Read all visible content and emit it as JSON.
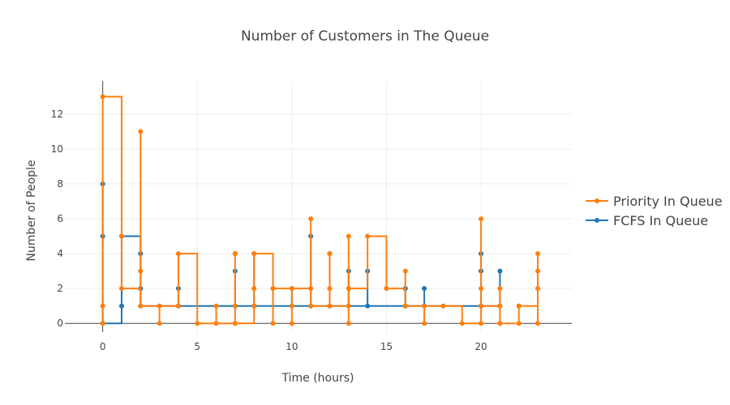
{
  "chart_data": {
    "type": "line",
    "title": "Number of Customers in The Queue",
    "xlabel": "Time (hours)",
    "ylabel": "Number of People",
    "xlim": [
      -2,
      24.8
    ],
    "ylim": [
      -0.5,
      13.9
    ],
    "xticks": [
      0,
      5,
      10,
      15,
      20
    ],
    "yticks": [
      0,
      2,
      4,
      6,
      8,
      10,
      12
    ],
    "grid": true,
    "legend_position": "right",
    "line_shape": "step",
    "series": [
      {
        "name": "Priority In Queue",
        "color": "#ff7f0e",
        "x": [
          0,
          0,
          0,
          1,
          1,
          2,
          2,
          2,
          3,
          3,
          4,
          4,
          5,
          6,
          6,
          7,
          7,
          7,
          7,
          7,
          8,
          8,
          8,
          9,
          9,
          9,
          10,
          10,
          10,
          11,
          11,
          11,
          12,
          12,
          12,
          13,
          13,
          13,
          13,
          13,
          14,
          15,
          15,
          16,
          16,
          16,
          17,
          17,
          18,
          19,
          20,
          20,
          20,
          20,
          21,
          21,
          21,
          21,
          22,
          22,
          22,
          23,
          23,
          23,
          23
        ],
        "y": [
          0,
          1,
          13,
          5,
          2,
          11,
          3,
          1,
          0,
          1,
          1,
          4,
          0,
          1,
          0,
          0,
          4,
          4,
          1,
          0,
          2,
          1,
          4,
          0,
          2,
          2,
          1,
          0,
          2,
          6,
          2,
          1,
          4,
          2,
          1,
          5,
          2,
          1,
          0,
          2,
          5,
          2,
          2,
          1,
          3,
          1,
          0,
          1,
          1,
          0,
          0,
          6,
          2,
          1,
          0,
          2,
          1,
          0,
          0,
          1,
          1,
          4,
          2,
          3,
          0
        ]
      },
      {
        "name": "FCFS In Queue",
        "color": "#1f77b4",
        "x": [
          0,
          0,
          0,
          1,
          1,
          2,
          2,
          2,
          4,
          4,
          7,
          7,
          8,
          8,
          10,
          10,
          11,
          11,
          12,
          12,
          13,
          13,
          14,
          14,
          16,
          16,
          17,
          17,
          20,
          20,
          20,
          21,
          21
        ],
        "y": [
          8,
          5,
          0,
          1,
          5,
          4,
          2,
          1,
          2,
          1,
          3,
          1,
          4,
          1,
          2,
          1,
          5,
          1,
          4,
          1,
          3,
          1,
          3,
          1,
          2,
          1,
          2,
          1,
          4,
          3,
          1,
          3,
          1
        ]
      }
    ]
  }
}
